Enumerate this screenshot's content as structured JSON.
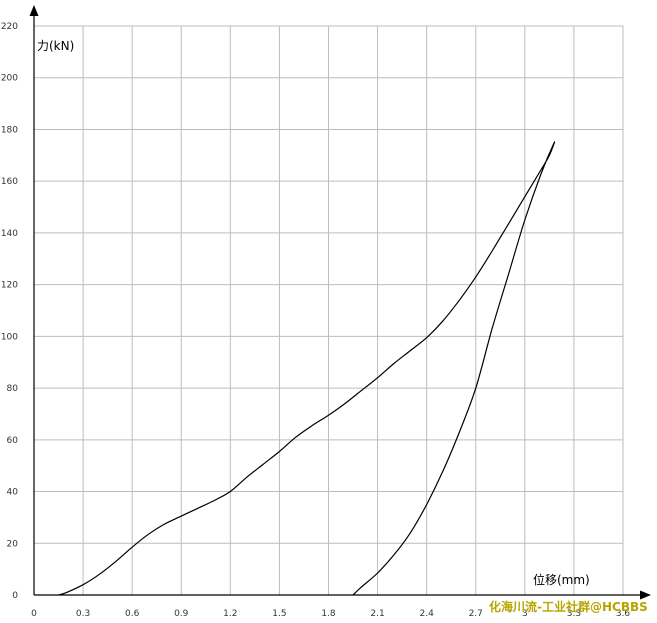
{
  "chart_data": {
    "type": "line",
    "xlabel": "位移(mm)",
    "ylabel": "力(kN)",
    "xlim": [
      0,
      3.6
    ],
    "ylim": [
      0,
      220
    ],
    "x_ticks": [
      "0",
      "0.3",
      "0.6",
      "0.9",
      "1.2",
      "1.5",
      "1.8",
      "2.1",
      "2.4",
      "2.7",
      "3",
      "3.3",
      "3.6"
    ],
    "y_ticks": [
      "0",
      "20",
      "40",
      "60",
      "80",
      "100",
      "120",
      "140",
      "160",
      "180",
      "200",
      "220"
    ],
    "grid": true,
    "series": [
      {
        "points": [
          [
            0.15,
            0
          ],
          [
            0.2,
            1
          ],
          [
            0.3,
            4
          ],
          [
            0.4,
            8
          ],
          [
            0.5,
            13
          ],
          [
            0.6,
            18.5
          ],
          [
            0.7,
            23.5
          ],
          [
            0.8,
            27.5
          ],
          [
            0.9,
            30.5
          ],
          [
            1.0,
            33.5
          ],
          [
            1.1,
            36.5
          ],
          [
            1.2,
            40
          ],
          [
            1.3,
            45.5
          ],
          [
            1.4,
            50.5
          ],
          [
            1.5,
            55.5
          ],
          [
            1.6,
            61
          ],
          [
            1.7,
            65.5
          ],
          [
            1.8,
            69.5
          ],
          [
            1.9,
            74
          ],
          [
            2.0,
            79
          ],
          [
            2.1,
            84
          ],
          [
            2.2,
            89.5
          ],
          [
            2.3,
            94.5
          ],
          [
            2.4,
            99.5
          ],
          [
            2.5,
            106
          ],
          [
            2.6,
            114
          ],
          [
            2.7,
            123
          ],
          [
            2.8,
            133
          ],
          [
            2.9,
            143.5
          ],
          [
            3.0,
            154
          ],
          [
            3.1,
            164.5
          ],
          [
            3.15,
            170
          ],
          [
            3.18,
            175
          ],
          [
            3.1,
            163
          ],
          [
            3.0,
            145
          ],
          [
            2.9,
            124
          ],
          [
            2.8,
            103
          ],
          [
            2.7,
            80
          ],
          [
            2.6,
            63
          ],
          [
            2.5,
            48
          ],
          [
            2.4,
            35
          ],
          [
            2.3,
            24
          ],
          [
            2.2,
            15.5
          ],
          [
            2.1,
            8.5
          ],
          [
            2.0,
            3
          ],
          [
            1.95,
            0
          ]
        ]
      }
    ]
  },
  "watermark": "化海川流-工业社群@HCBBS",
  "colors": {
    "curve": "#000000",
    "grid": "#bdbdbd",
    "watermark": "#b8a400"
  }
}
